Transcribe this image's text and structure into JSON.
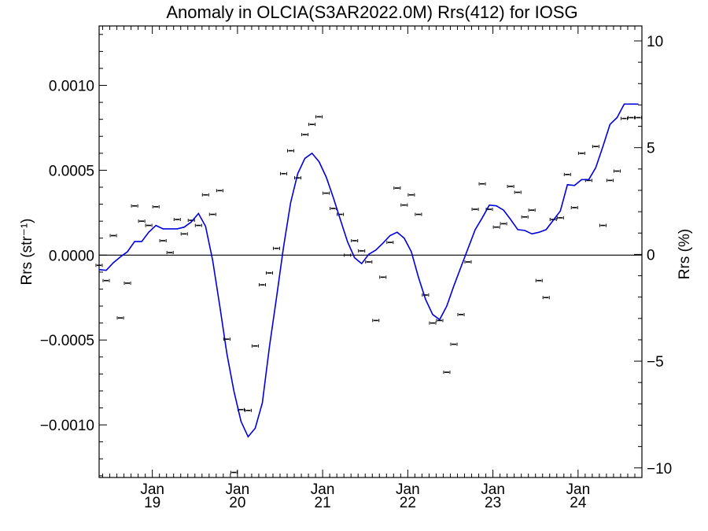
{
  "chart_data": {
    "type": "line",
    "title": "Anomaly in OLCIA(S3AR2022.0M) Rrs(412) for IOSG",
    "ylabel_left": "Rrs (str⁻¹)",
    "ylabel_right": "Rrs (%)",
    "ylim_left": [
      -0.00131,
      0.00135
    ],
    "ylim_right": [
      -10.45,
      10.7
    ],
    "yticks_left": [
      {
        "value": -0.001,
        "label": "−0.0010"
      },
      {
        "value": -0.0005,
        "label": "−0.0005"
      },
      {
        "value": 0.0,
        "label": "0.0000"
      },
      {
        "value": 0.0005,
        "label": "0.0005"
      },
      {
        "value": 0.001,
        "label": "0.0010"
      }
    ],
    "yticks_right": [
      {
        "value": -10,
        "label": "−10"
      },
      {
        "value": -5,
        "label": "−5"
      },
      {
        "value": 0,
        "label": "0"
      },
      {
        "value": 5,
        "label": "5"
      },
      {
        "value": 10,
        "label": "10"
      }
    ],
    "xlim": [
      2018.375,
      2024.75
    ],
    "xticks": [
      {
        "value": 2019.0,
        "month": "Jan",
        "year": "19"
      },
      {
        "value": 2020.0,
        "month": "Jan",
        "year": "20"
      },
      {
        "value": 2021.0,
        "month": "Jan",
        "year": "21"
      },
      {
        "value": 2022.0,
        "month": "Jan",
        "year": "22"
      },
      {
        "value": 2023.0,
        "month": "Jan",
        "year": "23"
      },
      {
        "value": 2024.0,
        "month": "Jan",
        "year": "24"
      }
    ],
    "zero_line": true,
    "colors": {
      "smoothed": "#0000dd",
      "points": "#000000",
      "axes": "#000000"
    },
    "series": [
      {
        "kind": "points",
        "x": [
          2018.375,
          2018.458,
          2018.542,
          2018.625,
          2018.708,
          2018.792,
          2018.875,
          2018.958,
          2019.042,
          2019.125,
          2019.208,
          2019.292,
          2019.375,
          2019.458,
          2019.542,
          2019.625,
          2019.708,
          2019.792,
          2019.875,
          2019.958,
          2020.042,
          2020.125,
          2020.208,
          2020.292,
          2020.375,
          2020.458,
          2020.542,
          2020.625,
          2020.708,
          2020.792,
          2020.875,
          2020.958,
          2021.042,
          2021.125,
          2021.208,
          2021.292,
          2021.375,
          2021.458,
          2021.542,
          2021.625,
          2021.708,
          2021.792,
          2021.875,
          2021.958,
          2022.042,
          2022.125,
          2022.208,
          2022.292,
          2022.375,
          2022.458,
          2022.542,
          2022.625,
          2022.708,
          2022.792,
          2022.875,
          2022.958,
          2023.042,
          2023.125,
          2023.208,
          2023.292,
          2023.375,
          2023.458,
          2023.542,
          2023.625,
          2023.708,
          2023.792,
          2023.875,
          2023.958,
          2024.042,
          2024.125,
          2024.208,
          2024.292,
          2024.375,
          2024.458,
          2024.542,
          2024.625,
          2024.708
        ],
        "y": [
          -6e-05,
          -0.00015,
          0.000115,
          -0.00037,
          -0.000165,
          0.00029,
          0.0002,
          0.000175,
          0.000285,
          8.5e-05,
          1.5e-05,
          0.00021,
          0.000125,
          0.000205,
          0.000175,
          0.000355,
          0.00024,
          0.00038,
          -0.000495,
          -0.00128,
          -0.00091,
          -0.000915,
          -0.000535,
          -0.000175,
          -0.000105,
          4e-05,
          0.00048,
          0.000615,
          0.000455,
          0.00071,
          0.00077,
          0.000815,
          0.000365,
          0.000275,
          0.00024,
          0.0,
          8.5e-05,
          2.5e-05,
          -4e-05,
          -0.000385,
          -0.00013,
          7.5e-05,
          0.000395,
          0.000295,
          0.000355,
          0.00024,
          -0.000235,
          -0.0004,
          -0.000385,
          -0.00069,
          -0.000525,
          -0.00035,
          -4e-05,
          0.00027,
          0.00042,
          0.00027,
          0.000165,
          0.000185,
          0.000405,
          0.00037,
          0.000225,
          0.000265,
          -0.00015,
          -0.00025,
          0.00021,
          0.00022,
          0.000475,
          0.00028,
          0.0006,
          0.00044,
          0.00064,
          0.000175,
          0.00044,
          0.000495,
          0.000805,
          0.00081,
          0.00081
        ]
      },
      {
        "kind": "smoothed_line",
        "x": [
          2018.375,
          2018.458,
          2018.542,
          2018.625,
          2018.708,
          2018.792,
          2018.875,
          2018.958,
          2019.042,
          2019.125,
          2019.208,
          2019.292,
          2019.375,
          2019.458,
          2019.542,
          2019.625,
          2019.708,
          2019.792,
          2019.875,
          2019.958,
          2020.042,
          2020.125,
          2020.208,
          2020.292,
          2020.375,
          2020.458,
          2020.542,
          2020.625,
          2020.708,
          2020.792,
          2020.875,
          2020.958,
          2021.042,
          2021.125,
          2021.208,
          2021.292,
          2021.375,
          2021.458,
          2021.542,
          2021.625,
          2021.708,
          2021.792,
          2021.875,
          2021.958,
          2022.042,
          2022.125,
          2022.208,
          2022.292,
          2022.375,
          2022.458,
          2022.542,
          2022.625,
          2022.708,
          2022.792,
          2022.875,
          2022.958,
          2023.042,
          2023.125,
          2023.208,
          2023.292,
          2023.375,
          2023.458,
          2023.542,
          2023.625,
          2023.708,
          2023.792,
          2023.875,
          2023.958,
          2024.042,
          2024.125,
          2024.208,
          2024.292,
          2024.375,
          2024.458,
          2024.542,
          2024.625,
          2024.708
        ],
        "y": [
          -8.5e-05,
          -9e-05,
          -4.5e-05,
          -1e-05,
          2e-05,
          8e-05,
          8e-05,
          0.000135,
          0.000175,
          0.000155,
          0.000155,
          0.000155,
          0.000165,
          0.000195,
          0.000245,
          0.00017,
          -3e-05,
          -0.0003,
          -0.00058,
          -0.0008,
          -0.00098,
          -0.00107,
          -0.00102,
          -0.00087,
          -0.00054,
          -0.00025,
          5e-05,
          0.00031,
          0.00048,
          0.00057,
          0.0006,
          0.00055,
          0.00046,
          0.00034,
          0.00021,
          8e-05,
          -1.5e-05,
          -5e-05,
          5e-06,
          3e-05,
          7e-05,
          0.000115,
          0.000135,
          0.0001,
          2e-05,
          -0.00013,
          -0.00026,
          -0.00035,
          -0.00038,
          -0.0003,
          -0.00018,
          -7e-05,
          4e-05,
          0.00015,
          0.00022,
          0.000295,
          0.00029,
          0.000265,
          0.00021,
          0.00015,
          0.000145,
          0.000125,
          0.000135,
          0.00015,
          0.000205,
          0.00026,
          0.000415,
          0.00041,
          0.000445,
          0.000445,
          0.000515,
          0.00064,
          0.00077,
          0.00081,
          0.00089,
          0.00089,
          0.00089
        ]
      }
    ]
  }
}
